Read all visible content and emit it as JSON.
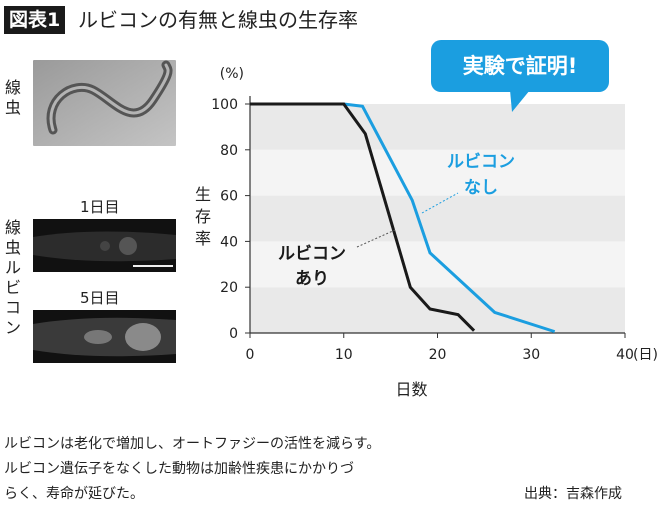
{
  "title": {
    "badge": "図表1",
    "text": "ルビコンの有無と線虫の生存率"
  },
  "left_panel": {
    "worm_label": "線虫",
    "rubicon_label": "線虫ルビコン",
    "day1_label": "1日目",
    "day5_label": "5日目"
  },
  "callout": "実験で証明!",
  "chart_data": {
    "type": "line",
    "title": "ルビコンの有無と線虫の生存率",
    "xlabel": "日数",
    "x_unit": "(日)",
    "ylabel": "生存率",
    "y_unit": "(%)",
    "xlim": [
      0,
      40
    ],
    "ylim": [
      0,
      100
    ],
    "xticks": [
      0,
      10,
      20,
      30,
      40
    ],
    "yticks": [
      0,
      20,
      40,
      60,
      80,
      100
    ],
    "grid": "alternating horizontal bands",
    "series": [
      {
        "name": "ルビコンあり",
        "label_line1": "ルビコン",
        "label_line2": "あり",
        "color": "#1a1a1a",
        "points": [
          [
            0,
            100
          ],
          [
            10,
            100
          ],
          [
            12.3,
            87
          ],
          [
            17.1,
            20
          ],
          [
            19.2,
            10.5
          ],
          [
            22.2,
            8
          ],
          [
            23.9,
            1
          ]
        ]
      },
      {
        "name": "ルビコンなし",
        "label_line1": "ルビコン",
        "label_line2": "なし",
        "color": "#1b9ee0",
        "points": [
          [
            0,
            100
          ],
          [
            10,
            100
          ],
          [
            12,
            99
          ],
          [
            17.3,
            58
          ],
          [
            19.2,
            35
          ],
          [
            26.1,
            9
          ],
          [
            32.5,
            0.6
          ]
        ]
      }
    ]
  },
  "footer": {
    "line1": "ルビコンは老化で増加し、オートファジーの活性を減らす。",
    "line2": "ルビコン遺伝子をなくした動物は加齢性疾患にかかりづ",
    "line3": "らく、寿命が延びた。",
    "source": "出典：吉森作成"
  }
}
